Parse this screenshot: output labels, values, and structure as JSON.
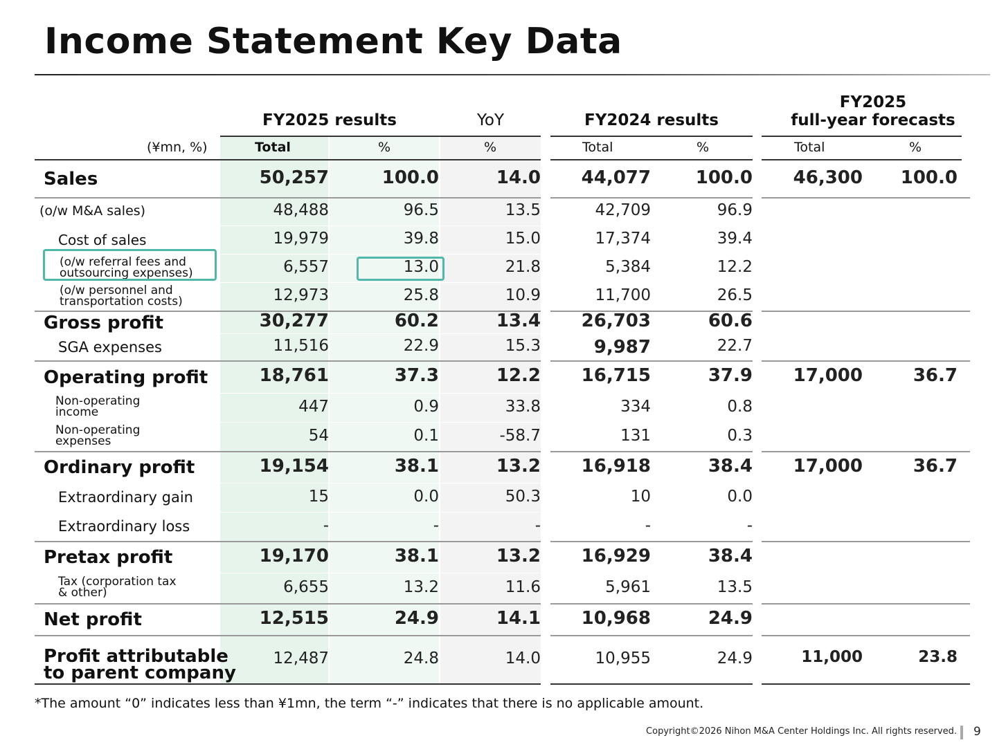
{
  "title": "Income Statement Key Data",
  "headers": {
    "fy2025": "FY2025 results",
    "yoy": "YoY",
    "fy2024": "FY2024 results",
    "forecast_l1": "FY2025",
    "forecast_l2": "full-year forecasts"
  },
  "subheaders": {
    "unit": "(¥mn, %)",
    "total": "Total",
    "pct": "%"
  },
  "rows": [
    {
      "label": "Sales",
      "v": [
        "50,257",
        "100.0",
        "14.0",
        "44,077",
        "100.0",
        "46,300",
        "100.0"
      ]
    },
    {
      "label": "(o/w M&A sales)",
      "v": [
        "48,488",
        "96.5",
        "13.5",
        "42,709",
        "96.9",
        "",
        ""
      ]
    },
    {
      "label": "Cost of sales",
      "v": [
        "19,979",
        "39.8",
        "15.0",
        "17,374",
        "39.4",
        "",
        ""
      ]
    },
    {
      "label_l1": "(o/w referral fees and",
      "label_l2": "outsourcing expenses)",
      "v": [
        "6,557",
        "13.0",
        "21.8",
        "5,384",
        "12.2",
        "",
        ""
      ]
    },
    {
      "label_l1": "(o/w personnel and",
      "label_l2": "transportation costs)",
      "v": [
        "12,973",
        "25.8",
        "10.9",
        "11,700",
        "26.5",
        "",
        ""
      ]
    },
    {
      "label": "Gross profit",
      "v": [
        "30,277",
        "60.2",
        "13.4",
        "26,703",
        "60.6",
        "",
        ""
      ]
    },
    {
      "label": "SGA expenses",
      "v": [
        "11,516",
        "22.9",
        "15.3",
        "9,987",
        "22.7",
        "",
        ""
      ]
    },
    {
      "label": "Operating profit",
      "v": [
        "18,761",
        "37.3",
        "12.2",
        "16,715",
        "37.9",
        "17,000",
        "36.7"
      ]
    },
    {
      "label_l1": "Non-operating",
      "label_l2": "income",
      "v": [
        "447",
        "0.9",
        "33.8",
        "334",
        "0.8",
        "",
        ""
      ]
    },
    {
      "label_l1": "Non-operating",
      "label_l2": "expenses",
      "v": [
        "54",
        "0.1",
        "-58.7",
        "131",
        "0.3",
        "",
        ""
      ]
    },
    {
      "label": "Ordinary profit",
      "v": [
        "19,154",
        "38.1",
        "13.2",
        "16,918",
        "38.4",
        "17,000",
        "36.7"
      ]
    },
    {
      "label": "Extraordinary gain",
      "v": [
        "15",
        "0.0",
        "50.3",
        "10",
        "0.0",
        "",
        ""
      ]
    },
    {
      "label": "Extraordinary loss",
      "v": [
        "-",
        "-",
        "-",
        "-",
        "-",
        "",
        ""
      ]
    },
    {
      "label": "Pretax profit",
      "v": [
        "19,170",
        "38.1",
        "13.2",
        "16,929",
        "38.4",
        "",
        ""
      ]
    },
    {
      "label_l1": "Tax (corporation tax",
      "label_l2": "& other)",
      "v": [
        "6,655",
        "13.2",
        "11.6",
        "5,961",
        "13.5",
        "",
        ""
      ]
    },
    {
      "label": "Net profit",
      "v": [
        "12,515",
        "24.9",
        "14.1",
        "10,968",
        "24.9",
        "",
        ""
      ]
    },
    {
      "label_l1": "Profit attributable",
      "label_l2": "to parent company",
      "v": [
        "12,487",
        "24.8",
        "14.0",
        "10,955",
        "24.9",
        "11,000",
        "23.8"
      ]
    }
  ],
  "footnote": "*The amount “0” indicates less than ¥1mn, the term “-” indicates that there is no applicable amount.",
  "copyright": "Copyright©2026 Nihon M&A Center Holdings Inc. All rights reserved.",
  "page_number": "9",
  "colors": {
    "highlight": "#4fb8a8",
    "total_band": "#e7f4ec",
    "pct_band": "#eff8f3",
    "yoy_band": "#f3f3f3"
  }
}
